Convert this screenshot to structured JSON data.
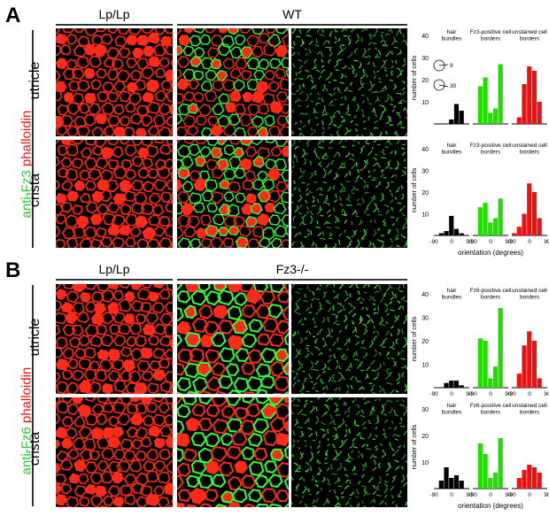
{
  "panels": [
    {
      "letter": "A",
      "left_header": "Lp/Lp",
      "right_header": "WT",
      "stain_green": "anti-Fz3",
      "stain_red": "phalloidin",
      "rows": [
        "utricle",
        "crista"
      ]
    },
    {
      "letter": "B",
      "left_header": "Lp/Lp",
      "right_header": "Fz3-/-",
      "stain_green": "anti-Fz6",
      "stain_red": "phalloidin",
      "rows": [
        "utricle",
        "crista"
      ]
    }
  ],
  "colors": {
    "hair_bundles": "#000000",
    "positive_borders": "#22dd00",
    "unstained_borders": "#ee1111",
    "phalloidin": "#ff2a1a",
    "antibody": "#33ff33"
  },
  "inset": {
    "label_9": "9",
    "label_30": "30"
  },
  "chart_data": [
    {
      "type": "bar",
      "panel": "A-utricle",
      "ylabel": "number of cells",
      "xlabel": "",
      "ylim": [
        0,
        40
      ],
      "yticks": [
        "40",
        "30",
        "20",
        "10"
      ],
      "xticks": [],
      "groups": [
        {
          "label": "hair bundles",
          "x": [
            -90,
            -60,
            -30,
            0,
            30,
            60,
            90
          ],
          "values": [
            0,
            0,
            0,
            2,
            9,
            6,
            0
          ]
        },
        {
          "label": "Fz3-positive cell borders",
          "x": [
            -90,
            -60,
            -30,
            0,
            30,
            60,
            90
          ],
          "values": [
            0,
            17,
            21,
            5,
            7,
            27,
            0
          ]
        },
        {
          "label": "unstained cell borders",
          "x": [
            -90,
            -60,
            -30,
            0,
            30,
            60,
            90
          ],
          "values": [
            0,
            3,
            18,
            26,
            24,
            10,
            0
          ]
        }
      ]
    },
    {
      "type": "bar",
      "panel": "A-crista",
      "ylabel": "number of cells",
      "xlabel": "orientation (degrees)",
      "ylim": [
        0,
        40
      ],
      "yticks": [
        "40",
        "30",
        "20",
        "10"
      ],
      "xticks": [
        "-90",
        "0",
        "90",
        "-90",
        "0",
        "90",
        "-90",
        "0",
        "90"
      ],
      "groups": [
        {
          "label": "hair bundles",
          "x": [
            -90,
            -60,
            -30,
            0,
            30,
            60,
            90
          ],
          "values": [
            0,
            1,
            2,
            9,
            3,
            1,
            0
          ]
        },
        {
          "label": "Fz3-positive cell borders",
          "x": [
            -90,
            -60,
            -30,
            0,
            30,
            60,
            90
          ],
          "values": [
            0,
            13,
            15,
            6,
            8,
            17,
            0
          ]
        },
        {
          "label": "unstained cell borders",
          "x": [
            -90,
            -60,
            -30,
            0,
            30,
            60,
            90
          ],
          "values": [
            1,
            4,
            10,
            24,
            20,
            8,
            0
          ]
        }
      ]
    },
    {
      "type": "bar",
      "panel": "B-utricle",
      "ylabel": "number of cells",
      "xlabel": "",
      "ylim": [
        0,
        40
      ],
      "yticks": [
        "40",
        "30",
        "20",
        "10"
      ],
      "xticks": [
        "-90",
        "0",
        "90",
        "-90",
        "0",
        "90",
        "-90",
        "0",
        "90"
      ],
      "groups": [
        {
          "label": "hair bundles",
          "x": [
            -90,
            -60,
            -30,
            0,
            30,
            60,
            90
          ],
          "values": [
            0,
            0,
            2,
            3,
            3,
            1,
            0
          ]
        },
        {
          "label": "Fz6-positive cell borders",
          "x": [
            -90,
            -60,
            -30,
            0,
            30,
            60,
            90
          ],
          "values": [
            0,
            21,
            20,
            4,
            9,
            34,
            0
          ]
        },
        {
          "label": "unstained cell borders",
          "x": [
            -90,
            -60,
            -30,
            0,
            30,
            60,
            90
          ],
          "values": [
            0,
            6,
            18,
            24,
            20,
            4,
            0
          ]
        }
      ]
    },
    {
      "type": "bar",
      "panel": "B-crista",
      "ylabel": "number of cells",
      "xlabel": "orientation (degrees)",
      "ylim": [
        0,
        30
      ],
      "yticks": [
        "30",
        "20",
        "10"
      ],
      "xticks": [
        "-90",
        "0",
        "90",
        "-90",
        "0",
        "90",
        "-90",
        "0",
        "90"
      ],
      "groups": [
        {
          "label": "hair bundles",
          "x": [
            -90,
            -60,
            -30,
            0,
            30,
            60,
            90
          ],
          "values": [
            0,
            3,
            8,
            4,
            5,
            3,
            0
          ]
        },
        {
          "label": "Fz6-positive cell borders",
          "x": [
            -90,
            -60,
            -30,
            0,
            30,
            60,
            90
          ],
          "values": [
            0,
            17,
            13,
            4,
            6,
            19,
            0
          ]
        },
        {
          "label": "unstained cell borders",
          "x": [
            -90,
            -60,
            -30,
            0,
            30,
            60,
            90
          ],
          "values": [
            0,
            4,
            7,
            9,
            8,
            6,
            0
          ]
        }
      ]
    }
  ]
}
